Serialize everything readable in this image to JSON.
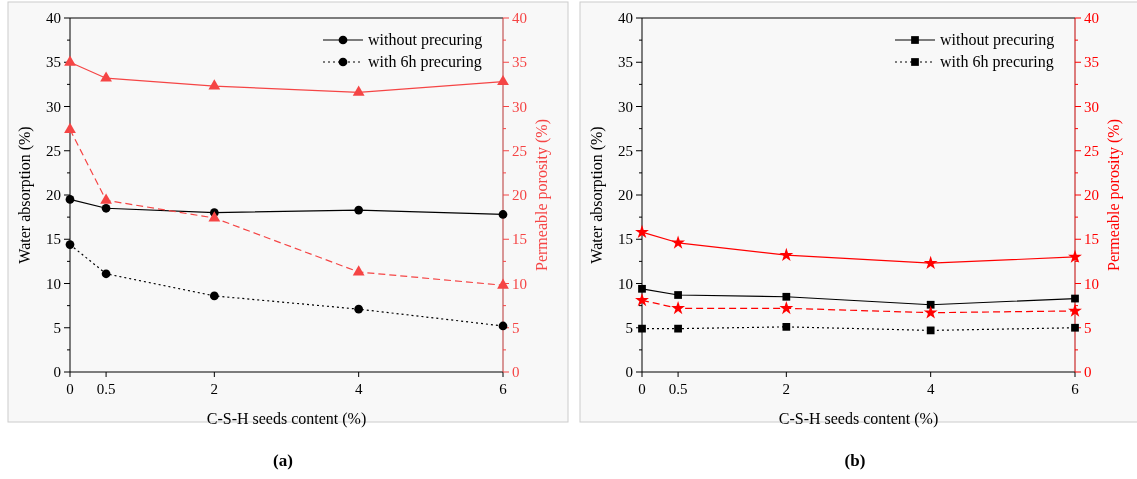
{
  "chart_data": [
    {
      "type": "line",
      "title": "(a)",
      "xlabel": "C-S-H seeds content (%)",
      "ylabel": "Water absorption (%)",
      "y2label": "Permeable porosity (%)",
      "x": [
        0,
        0.5,
        2,
        4,
        6
      ],
      "xlim": [
        0,
        6
      ],
      "xticks": [
        0,
        0.5,
        2,
        4,
        6
      ],
      "ylim": [
        0,
        40
      ],
      "yticks": [
        0,
        {
          "value": 2.5,
          "label": null
        },
        5,
        {
          "value": 7.5,
          "label": null
        },
        10,
        {
          "value": 12.5,
          "label": null
        },
        15,
        {
          "value": 17.5,
          "label": null
        },
        20,
        {
          "value": 22.5,
          "label": null
        },
        25,
        {
          "value": 27.5,
          "label": null
        },
        30,
        {
          "value": 32.5,
          "label": null
        },
        35,
        {
          "value": 37.5,
          "label": null
        },
        40
      ],
      "y2lim": [
        0,
        40
      ],
      "y2ticks": [
        0,
        {
          "value": 2.5,
          "label": null
        },
        5,
        {
          "value": 7.5,
          "label": null
        },
        10,
        {
          "value": 12.5,
          "label": null
        },
        15,
        {
          "value": 17.5,
          "label": null
        },
        20,
        {
          "value": 22.5,
          "label": null
        },
        25,
        {
          "value": 27.5,
          "label": null
        },
        30,
        {
          "value": 32.5,
          "label": null
        },
        35,
        {
          "value": 37.5,
          "label": null
        },
        40
      ],
      "legend": "top right",
      "series": [
        {
          "name": "without precuring",
          "color": "#000000",
          "marker": "circle",
          "line_style": "solid",
          "values": [
            19.5,
            18.5,
            18.0,
            18.3,
            17.8
          ]
        },
        {
          "name": "with 6h precuring",
          "color": "#000000",
          "marker": "circle",
          "line_style": "dotted",
          "values": [
            14.4,
            11.1,
            8.6,
            7.1,
            5.2
          ]
        },
        {
          "color": "#f54545",
          "marker": "triangle",
          "line_style": "solid",
          "axis": "y2",
          "values": [
            35.0,
            33.2,
            32.3,
            31.6,
            32.8
          ]
        },
        {
          "color": "#f54545",
          "marker": "triangle",
          "line_style": "dashed",
          "axis": "y2",
          "values": [
            27.4,
            19.4,
            17.4,
            11.3,
            9.8
          ]
        }
      ]
    },
    {
      "type": "line",
      "title": "(b)",
      "xlabel": "C-S-H seeds content (%)",
      "ylabel": "Water absorption (%)",
      "y2label": "Permeable porosity (%)",
      "x": [
        0,
        0.5,
        2,
        4,
        6
      ],
      "xlim": [
        0,
        6
      ],
      "xticks": [
        0,
        0.5,
        2,
        4,
        6
      ],
      "ylim": [
        0,
        40
      ],
      "yticks": [
        0,
        {
          "value": 2.5,
          "label": null
        },
        5,
        {
          "value": 7.5,
          "label": null
        },
        10,
        {
          "value": 12.5,
          "label": null
        },
        15,
        {
          "value": 17.5,
          "label": null
        },
        20,
        {
          "value": 22.5,
          "label": null
        },
        25,
        {
          "value": 27.5,
          "label": null
        },
        30,
        {
          "value": 32.5,
          "label": null
        },
        35,
        {
          "value": 37.5,
          "label": null
        },
        40
      ],
      "y2lim": [
        0,
        40
      ],
      "y2ticks": [
        0,
        {
          "value": 2.5,
          "label": null
        },
        5,
        {
          "value": 7.5,
          "label": null
        },
        10,
        {
          "value": 12.5,
          "label": null
        },
        15,
        {
          "value": 17.5,
          "label": null
        },
        20,
        {
          "value": 22.5,
          "label": null
        },
        25,
        {
          "value": 27.5,
          "label": null
        },
        30,
        {
          "value": 32.5,
          "label": null
        },
        35,
        {
          "value": 37.5,
          "label": null
        },
        40
      ],
      "legend": "top right",
      "series": [
        {
          "name": "without precuring",
          "color": "#000000",
          "marker": "square",
          "line_style": "solid",
          "values": [
            9.4,
            8.7,
            8.5,
            7.6,
            8.3
          ]
        },
        {
          "name": "with 6h precuring",
          "color": "#000000",
          "marker": "square",
          "line_style": "dotted",
          "values": [
            4.9,
            4.9,
            5.1,
            4.7,
            5.0
          ]
        },
        {
          "color": "#ff0000",
          "marker": "star",
          "line_style": "solid",
          "axis": "y2",
          "values": [
            15.8,
            14.6,
            13.2,
            12.3,
            13.0
          ]
        },
        {
          "color": "#ff0000",
          "marker": "star",
          "line_style": "dashed",
          "axis": "y2",
          "values": [
            8.1,
            7.2,
            7.2,
            6.7,
            6.9
          ]
        }
      ]
    }
  ]
}
